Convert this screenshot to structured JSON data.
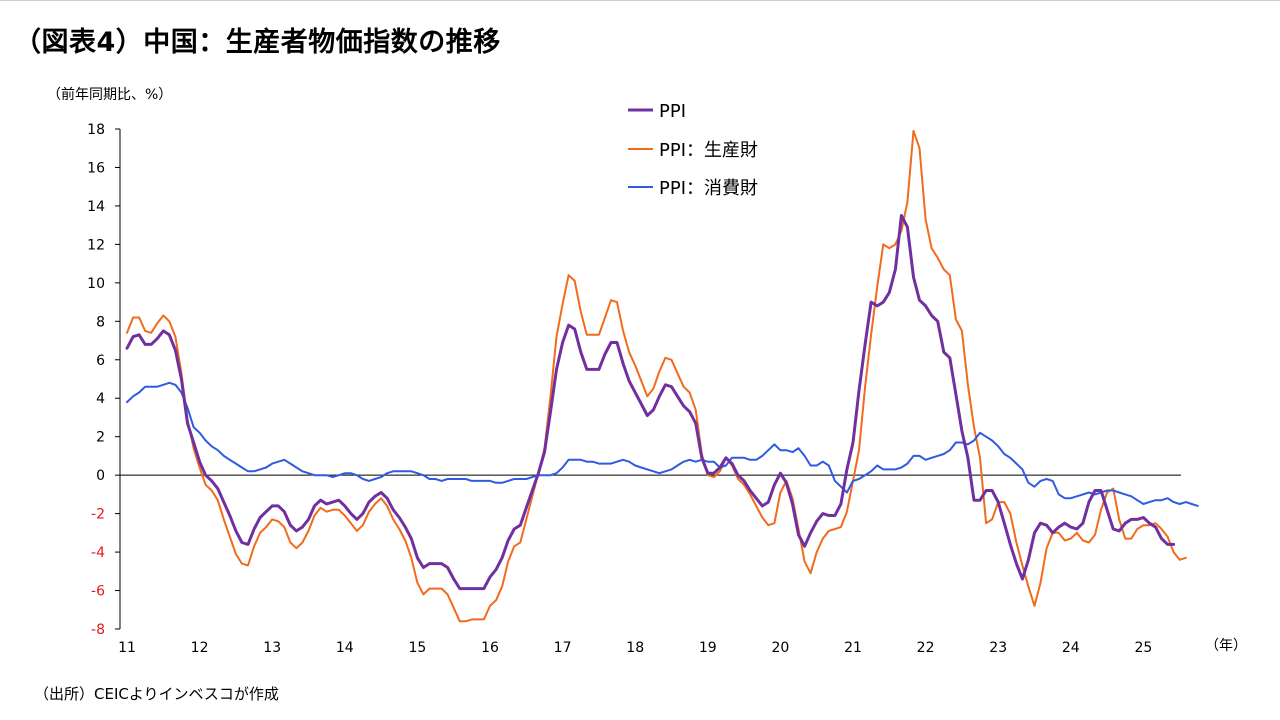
{
  "header": {
    "title": "（図表4）中国：生産者物価指数の推移",
    "unit_label": "（前年同期比、%）"
  },
  "footer": {
    "source": "（出所）CEICよりインベスコが作成"
  },
  "colors": {
    "ppi": "#7030A0",
    "ppi_producer": "#F26B1D",
    "ppi_consumer": "#2F5BE0",
    "negative_tick": "#E31A1C",
    "axis": "#000000"
  },
  "chart_data": {
    "type": "line",
    "title": "（図表4）中国：生産者物価指数の推移",
    "ylabel": "（前年同期比、%）",
    "xlabel": "（年）",
    "x_start": "2011-01",
    "x_frequency": "monthly",
    "x_end": "2025-06",
    "ylim": [
      -8,
      18
    ],
    "yticks": [
      18,
      16,
      14,
      12,
      10,
      8,
      6,
      4,
      2,
      0,
      -2,
      -4,
      -6,
      -8
    ],
    "xtick_labels": [
      "11",
      "12",
      "13",
      "14",
      "15",
      "16",
      "17",
      "18",
      "19",
      "20",
      "21",
      "22",
      "23",
      "24",
      "25"
    ],
    "xtick_unit_label": "（年）",
    "grid": false,
    "legend_position": "top-center",
    "series": [
      {
        "name": "PPI",
        "color": "#7030A0",
        "values": [
          6.6,
          7.2,
          7.3,
          6.8,
          6.8,
          7.1,
          7.5,
          7.3,
          6.5,
          5.0,
          2.7,
          1.7,
          0.7,
          0.0,
          -0.3,
          -0.7,
          -1.4,
          -2.1,
          -2.9,
          -3.5,
          -3.6,
          -2.8,
          -2.2,
          -1.9,
          -1.6,
          -1.6,
          -1.9,
          -2.6,
          -2.9,
          -2.7,
          -2.3,
          -1.6,
          -1.3,
          -1.5,
          -1.4,
          -1.3,
          -1.6,
          -2.0,
          -2.3,
          -2.0,
          -1.4,
          -1.1,
          -0.9,
          -1.2,
          -1.8,
          -2.2,
          -2.7,
          -3.3,
          -4.3,
          -4.8,
          -4.6,
          -4.6,
          -4.6,
          -4.8,
          -5.4,
          -5.9,
          -5.9,
          -5.9,
          -5.9,
          -5.9,
          -5.3,
          -4.9,
          -4.3,
          -3.4,
          -2.8,
          -2.6,
          -1.7,
          -0.8,
          0.1,
          1.2,
          3.3,
          5.5,
          6.9,
          7.8,
          7.6,
          6.4,
          5.5,
          5.5,
          5.5,
          6.3,
          6.9,
          6.9,
          5.8,
          4.9,
          4.3,
          3.7,
          3.1,
          3.4,
          4.1,
          4.7,
          4.6,
          4.1,
          3.6,
          3.3,
          2.7,
          0.9,
          0.1,
          0.1,
          0.4,
          0.9,
          0.6,
          0.0,
          -0.3,
          -0.8,
          -1.2,
          -1.6,
          -1.4,
          -0.5,
          0.1,
          -0.4,
          -1.5,
          -3.1,
          -3.7,
          -3.0,
          -2.4,
          -2.0,
          -2.1,
          -2.1,
          -1.5,
          0.3,
          1.7,
          4.4,
          6.8,
          9.0,
          8.8,
          9.0,
          9.5,
          10.7,
          13.5,
          12.9,
          10.3,
          9.1,
          8.8,
          8.3,
          8.0,
          6.4,
          6.1,
          4.2,
          2.3,
          0.9,
          -1.3,
          -1.3,
          -0.8,
          -0.8,
          -1.4,
          -2.5,
          -3.6,
          -4.6,
          -5.4,
          -4.4,
          -3.0,
          -2.5,
          -2.6,
          -3.0,
          -2.7,
          -2.5,
          -2.7,
          -2.8,
          -2.5,
          -1.4,
          -0.8,
          -0.8,
          -1.8,
          -2.8,
          -2.9,
          -2.5,
          -2.3,
          -2.3,
          -2.2,
          -2.5,
          -2.7,
          -3.3,
          -3.6,
          -3.6
        ]
      },
      {
        "name": "PPI：生産財",
        "color": "#F26B1D",
        "values": [
          7.4,
          8.2,
          8.2,
          7.5,
          7.4,
          7.9,
          8.3,
          8.0,
          7.2,
          5.3,
          2.9,
          1.4,
          0.4,
          -0.5,
          -0.8,
          -1.3,
          -2.3,
          -3.2,
          -4.1,
          -4.6,
          -4.7,
          -3.7,
          -3.0,
          -2.7,
          -2.3,
          -2.4,
          -2.7,
          -3.5,
          -3.8,
          -3.5,
          -2.9,
          -2.1,
          -1.7,
          -1.9,
          -1.8,
          -1.8,
          -2.1,
          -2.5,
          -2.9,
          -2.6,
          -1.9,
          -1.5,
          -1.2,
          -1.6,
          -2.3,
          -2.8,
          -3.4,
          -4.3,
          -5.6,
          -6.2,
          -5.9,
          -5.9,
          -5.9,
          -6.2,
          -6.9,
          -7.6,
          -7.6,
          -7.5,
          -7.5,
          -7.5,
          -6.8,
          -6.5,
          -5.8,
          -4.5,
          -3.7,
          -3.5,
          -2.3,
          -1.1,
          0.1,
          1.4,
          4.1,
          7.2,
          8.9,
          10.4,
          10.1,
          8.5,
          7.3,
          7.3,
          7.3,
          8.2,
          9.1,
          9.0,
          7.5,
          6.4,
          5.7,
          4.9,
          4.1,
          4.5,
          5.4,
          6.1,
          6.0,
          5.3,
          4.6,
          4.3,
          3.4,
          1.1,
          0.0,
          -0.1,
          0.2,
          0.9,
          0.5,
          -0.2,
          -0.5,
          -1.0,
          -1.6,
          -2.2,
          -2.6,
          -2.5,
          -0.9,
          -0.3,
          -1.2,
          -2.8,
          -4.5,
          -5.1,
          -4.0,
          -3.3,
          -2.9,
          -2.8,
          -2.7,
          -1.9,
          -0.3,
          1.3,
          4.6,
          7.3,
          9.8,
          12.0,
          11.8,
          12.0,
          12.7,
          14.2,
          17.9,
          17.0,
          13.3,
          11.8,
          11.3,
          10.7,
          10.4,
          8.1,
          7.5,
          4.7,
          2.5,
          0.9,
          -2.5,
          -2.3,
          -1.4,
          -1.4,
          -2.0,
          -3.5,
          -4.7,
          -5.8,
          -6.8,
          -5.6,
          -3.8,
          -3.0,
          -3.0,
          -3.4,
          -3.3,
          -3.0,
          -3.4,
          -3.5,
          -3.1,
          -1.8,
          -0.9,
          -0.7,
          -2.3,
          -3.3,
          -3.3,
          -2.8,
          -2.6,
          -2.6,
          -2.5,
          -2.8,
          -3.2,
          -4.0,
          -4.4,
          -4.3
        ]
      },
      {
        "name": "PPI：消費財",
        "color": "#2F5BE0",
        "values": [
          3.8,
          4.1,
          4.3,
          4.6,
          4.6,
          4.6,
          4.7,
          4.8,
          4.7,
          4.3,
          3.5,
          2.5,
          2.2,
          1.8,
          1.5,
          1.3,
          1.0,
          0.8,
          0.6,
          0.4,
          0.2,
          0.2,
          0.3,
          0.4,
          0.6,
          0.7,
          0.8,
          0.6,
          0.4,
          0.2,
          0.1,
          0.0,
          0.0,
          0.0,
          -0.1,
          0.0,
          0.1,
          0.1,
          0.0,
          -0.2,
          -0.3,
          -0.2,
          -0.1,
          0.1,
          0.2,
          0.2,
          0.2,
          0.2,
          0.1,
          0.0,
          -0.2,
          -0.2,
          -0.3,
          -0.2,
          -0.2,
          -0.2,
          -0.2,
          -0.3,
          -0.3,
          -0.3,
          -0.3,
          -0.4,
          -0.4,
          -0.3,
          -0.2,
          -0.2,
          -0.2,
          -0.1,
          0.0,
          0.0,
          0.0,
          0.1,
          0.4,
          0.8,
          0.8,
          0.8,
          0.7,
          0.7,
          0.6,
          0.6,
          0.6,
          0.7,
          0.8,
          0.7,
          0.5,
          0.4,
          0.3,
          0.2,
          0.1,
          0.2,
          0.3,
          0.5,
          0.7,
          0.8,
          0.7,
          0.8,
          0.7,
          0.7,
          0.4,
          0.5,
          0.9,
          0.9,
          0.9,
          0.8,
          0.8,
          1.0,
          1.3,
          1.6,
          1.3,
          1.3,
          1.2,
          1.4,
          1.0,
          0.5,
          0.5,
          0.7,
          0.5,
          -0.3,
          -0.6,
          -0.9,
          -0.3,
          -0.2,
          0.0,
          0.2,
          0.5,
          0.3,
          0.3,
          0.3,
          0.4,
          0.6,
          1.0,
          1.0,
          0.8,
          0.9,
          1.0,
          1.1,
          1.3,
          1.7,
          1.7,
          1.6,
          1.8,
          2.2,
          2.0,
          1.8,
          1.5,
          1.1,
          0.9,
          0.6,
          0.3,
          -0.4,
          -0.6,
          -0.3,
          -0.2,
          -0.3,
          -1.0,
          -1.2,
          -1.2,
          -1.1,
          -1.0,
          -0.9,
          -1.0,
          -0.9,
          -0.8,
          -0.8,
          -0.9,
          -1.0,
          -1.1,
          -1.3,
          -1.5,
          -1.4,
          -1.3,
          -1.3,
          -1.2,
          -1.4,
          -1.5,
          -1.4,
          -1.5,
          -1.6
        ]
      }
    ]
  }
}
